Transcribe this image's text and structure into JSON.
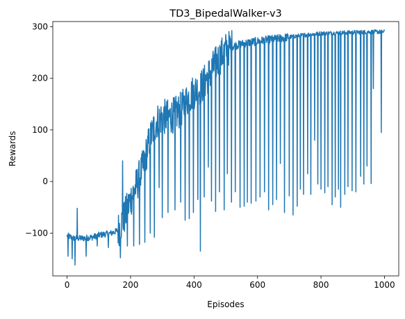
{
  "chart_data": {
    "type": "line",
    "title": "TD3_BipedalWalker-v3",
    "xlabel": "Episodes",
    "ylabel": "Rewards",
    "xlim": [
      -45,
      1045
    ],
    "ylim": [
      -183,
      310
    ],
    "xticks": [
      0,
      200,
      400,
      600,
      800,
      1000
    ],
    "yticks": [
      -100,
      0,
      100,
      200,
      300
    ],
    "xtick_labels": [
      "0",
      "200",
      "400",
      "600",
      "800",
      "1000"
    ],
    "ytick_labels": [
      "−100",
      "0",
      "100",
      "200",
      "300"
    ],
    "grid": false,
    "line_color": "#1f77b4",
    "series": [
      {
        "trend": {
          "x": [
            0,
            20,
            50,
            80,
            100,
            120,
            140,
            160,
            180,
            200,
            220,
            240,
            260,
            280,
            300,
            320,
            340,
            360,
            380,
            400,
            420,
            440,
            460,
            480,
            500,
            520,
            540,
            560,
            580,
            600,
            650,
            700,
            750,
            800,
            850,
            900,
            950,
            1000
          ],
          "y": [
            -105,
            -110,
            -110,
            -108,
            -104,
            -102,
            -100,
            -95,
            -70,
            -35,
            -5,
            30,
            80,
            115,
            125,
            125,
            130,
            140,
            160,
            175,
            180,
            200,
            220,
            240,
            255,
            262,
            265,
            268,
            270,
            272,
            276,
            280,
            284,
            287,
            288,
            289,
            290,
            290
          ]
        },
        "dips": [
          {
            "x": 3,
            "y": -145
          },
          {
            "x": 16,
            "y": -150
          },
          {
            "x": 25,
            "y": -162
          },
          {
            "x": 32,
            "y": -52
          },
          {
            "x": 60,
            "y": -145
          },
          {
            "x": 95,
            "y": -125
          },
          {
            "x": 130,
            "y": -128
          },
          {
            "x": 168,
            "y": -148
          },
          {
            "x": 175,
            "y": 40
          },
          {
            "x": 190,
            "y": -125
          },
          {
            "x": 210,
            "y": -125
          },
          {
            "x": 228,
            "y": -122
          },
          {
            "x": 245,
            "y": -118
          },
          {
            "x": 262,
            "y": -100
          },
          {
            "x": 275,
            "y": -108
          },
          {
            "x": 290,
            "y": -12
          },
          {
            "x": 300,
            "y": -70
          },
          {
            "x": 318,
            "y": -60
          },
          {
            "x": 340,
            "y": -55
          },
          {
            "x": 358,
            "y": -40
          },
          {
            "x": 372,
            "y": -75
          },
          {
            "x": 385,
            "y": -72
          },
          {
            "x": 398,
            "y": -60
          },
          {
            "x": 412,
            "y": -35
          },
          {
            "x": 420,
            "y": -135
          },
          {
            "x": 432,
            "y": -30
          },
          {
            "x": 445,
            "y": 28
          },
          {
            "x": 455,
            "y": -38
          },
          {
            "x": 468,
            "y": -58
          },
          {
            "x": 480,
            "y": -20
          },
          {
            "x": 495,
            "y": -55
          },
          {
            "x": 505,
            "y": 15
          },
          {
            "x": 518,
            "y": -40
          },
          {
            "x": 530,
            "y": -20
          },
          {
            "x": 545,
            "y": -50
          },
          {
            "x": 558,
            "y": -48
          },
          {
            "x": 568,
            "y": -40
          },
          {
            "x": 580,
            "y": -42
          },
          {
            "x": 595,
            "y": -38
          },
          {
            "x": 608,
            "y": -30
          },
          {
            "x": 622,
            "y": -20
          },
          {
            "x": 635,
            "y": -55
          },
          {
            "x": 648,
            "y": -45
          },
          {
            "x": 660,
            "y": -35
          },
          {
            "x": 672,
            "y": 35
          },
          {
            "x": 685,
            "y": -60
          },
          {
            "x": 700,
            "y": -28
          },
          {
            "x": 712,
            "y": -65
          },
          {
            "x": 725,
            "y": -48
          },
          {
            "x": 735,
            "y": -15
          },
          {
            "x": 745,
            "y": -25
          },
          {
            "x": 758,
            "y": 15
          },
          {
            "x": 768,
            "y": -25
          },
          {
            "x": 780,
            "y": 80
          },
          {
            "x": 790,
            "y": -5
          },
          {
            "x": 800,
            "y": -15
          },
          {
            "x": 812,
            "y": -22
          },
          {
            "x": 822,
            "y": -10
          },
          {
            "x": 835,
            "y": -45
          },
          {
            "x": 845,
            "y": -30
          },
          {
            "x": 855,
            "y": -15
          },
          {
            "x": 862,
            "y": -50
          },
          {
            "x": 875,
            "y": -25
          },
          {
            "x": 885,
            "y": -10
          },
          {
            "x": 898,
            "y": -18
          },
          {
            "x": 910,
            "y": -20
          },
          {
            "x": 925,
            "y": 10
          },
          {
            "x": 935,
            "y": -5
          },
          {
            "x": 945,
            "y": 30
          },
          {
            "x": 958,
            "y": -4
          },
          {
            "x": 965,
            "y": 180
          },
          {
            "x": 990,
            "y": 95
          },
          {
            "x": 994,
            "y": 290
          }
        ]
      }
    ]
  }
}
